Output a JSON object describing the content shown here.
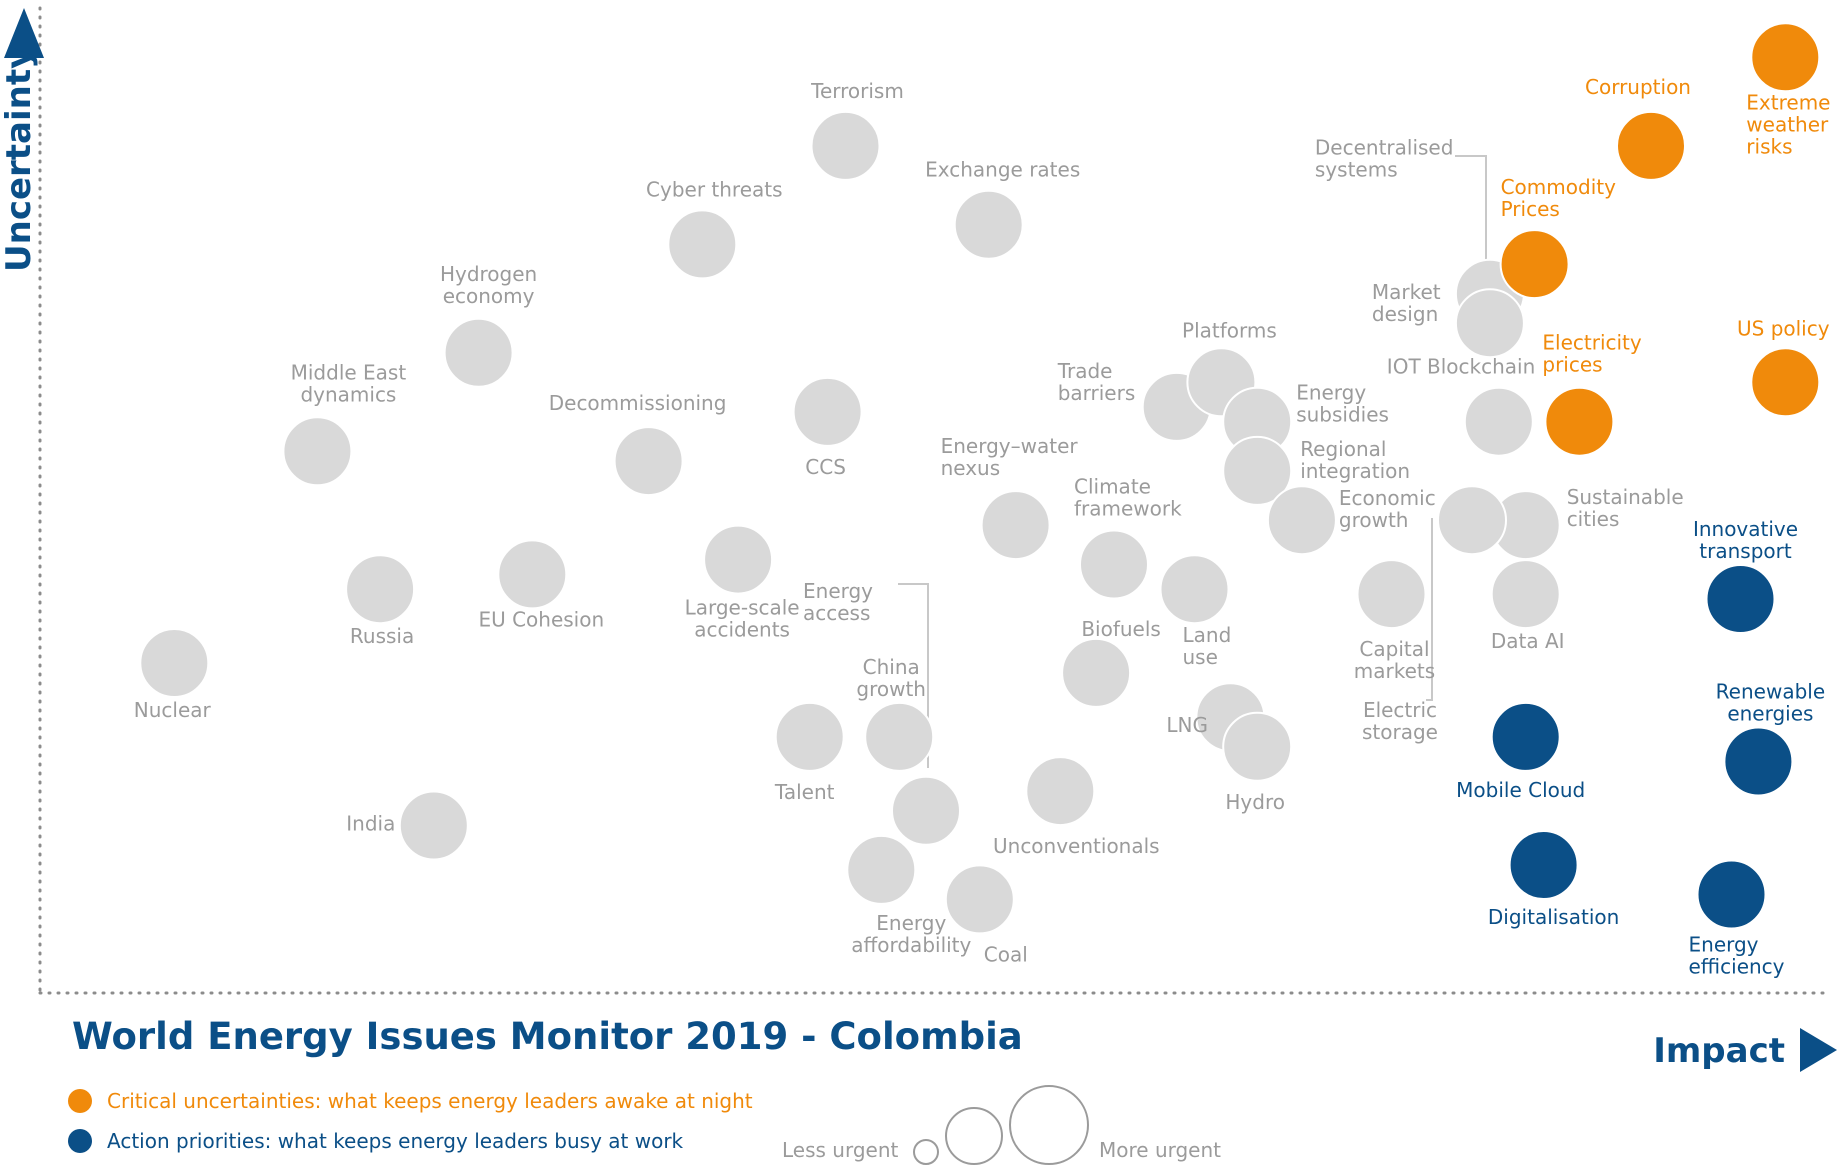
{
  "chart_data": {
    "type": "scatter",
    "title": "World Energy Issues Monitor 2019 - Colombia",
    "xlabel": "Impact",
    "ylabel": "Uncertainty",
    "xlim": [
      0,
      100
    ],
    "ylim": [
      0,
      100
    ],
    "grid": false,
    "colors": {
      "neutral": "#d9d9d9",
      "critical": "#f08a0b",
      "action": "#0b4f87",
      "label_neutral": "#9b9b9b"
    },
    "legend": [
      {
        "category": "critical",
        "label": "Critical uncertainties: what keeps energy leaders awake at night"
      },
      {
        "category": "action",
        "label": "Action priorities: what keeps energy leaders busy at work"
      }
    ],
    "size_legend": {
      "less": "Less urgent",
      "more": "More urgent"
    },
    "points": [
      {
        "name": "Terrorism",
        "x": 45,
        "y": 86,
        "category": "neutral"
      },
      {
        "name": "Cyber threats",
        "x": 37,
        "y": 76,
        "category": "neutral"
      },
      {
        "name": "Exchange rates",
        "x": 53,
        "y": 78,
        "category": "neutral"
      },
      {
        "name": "Hydrogen economy",
        "x": 24.5,
        "y": 65,
        "category": "neutral"
      },
      {
        "name": "Middle East dynamics",
        "x": 15.5,
        "y": 55,
        "category": "neutral"
      },
      {
        "name": "Decommissioning",
        "x": 34,
        "y": 54,
        "category": "neutral"
      },
      {
        "name": "CCS",
        "x": 44,
        "y": 59,
        "category": "neutral"
      },
      {
        "name": "Energy–water nexus",
        "x": 54.5,
        "y": 47.5,
        "category": "neutral"
      },
      {
        "name": "Climate framework",
        "x": 60,
        "y": 43.5,
        "category": "neutral"
      },
      {
        "name": "Trade barriers",
        "x": 63.5,
        "y": 59.5,
        "category": "neutral"
      },
      {
        "name": "Platforms",
        "x": 66,
        "y": 62,
        "category": "neutral"
      },
      {
        "name": "Energy subsidies",
        "x": 68,
        "y": 58,
        "category": "neutral"
      },
      {
        "name": "Regional integration",
        "x": 68,
        "y": 53,
        "category": "neutral"
      },
      {
        "name": "Economic growth",
        "x": 70.5,
        "y": 48,
        "category": "neutral"
      },
      {
        "name": "Decentralised systems",
        "x": 81,
        "y": 71,
        "category": "neutral"
      },
      {
        "name": "Market design",
        "x": 81,
        "y": 68,
        "category": "neutral"
      },
      {
        "name": "IOT Blockchain",
        "x": 81.5,
        "y": 58,
        "category": "neutral"
      },
      {
        "name": "Sustainable cities",
        "x": 83,
        "y": 47.5,
        "category": "neutral"
      },
      {
        "name": "Electric storage",
        "x": 80,
        "y": 48,
        "category": "neutral"
      },
      {
        "name": "Data AI",
        "x": 83,
        "y": 40.5,
        "category": "neutral"
      },
      {
        "name": "Capital markets",
        "x": 75.5,
        "y": 40.5,
        "category": "neutral"
      },
      {
        "name": "Russia",
        "x": 19,
        "y": 41,
        "category": "neutral"
      },
      {
        "name": "EU Cohesion",
        "x": 27.5,
        "y": 42.5,
        "category": "neutral"
      },
      {
        "name": "Large-scale accidents",
        "x": 39,
        "y": 44,
        "category": "neutral"
      },
      {
        "name": "Nuclear",
        "x": 7.5,
        "y": 33.5,
        "category": "neutral"
      },
      {
        "name": "Biofuels",
        "x": 59,
        "y": 32.5,
        "category": "neutral"
      },
      {
        "name": "Land use",
        "x": 64.5,
        "y": 41,
        "category": "neutral"
      },
      {
        "name": "LNG",
        "x": 66.5,
        "y": 28,
        "category": "neutral"
      },
      {
        "name": "Hydro",
        "x": 68,
        "y": 25,
        "category": "neutral"
      },
      {
        "name": "Talent",
        "x": 43,
        "y": 26,
        "category": "neutral"
      },
      {
        "name": "China growth",
        "x": 48,
        "y": 26,
        "category": "neutral"
      },
      {
        "name": "Energy access",
        "x": 49.5,
        "y": 18.5,
        "category": "neutral"
      },
      {
        "name": "Unconventionals",
        "x": 57,
        "y": 20.5,
        "category": "neutral"
      },
      {
        "name": "Energy affordability",
        "x": 47,
        "y": 12.5,
        "category": "neutral"
      },
      {
        "name": "Coal",
        "x": 52.5,
        "y": 9.5,
        "category": "neutral"
      },
      {
        "name": "India",
        "x": 22,
        "y": 17,
        "category": "neutral"
      },
      {
        "name": "Extreme weather risks",
        "x": 97.5,
        "y": 95,
        "category": "critical"
      },
      {
        "name": "Corruption",
        "x": 90,
        "y": 86,
        "category": "critical"
      },
      {
        "name": "Commodity Prices",
        "x": 83.5,
        "y": 74,
        "category": "critical"
      },
      {
        "name": "Electricity prices",
        "x": 86,
        "y": 58,
        "category": "critical"
      },
      {
        "name": "US policy",
        "x": 97.5,
        "y": 62,
        "category": "critical"
      },
      {
        "name": "Innovative transport",
        "x": 95,
        "y": 40,
        "category": "action"
      },
      {
        "name": "Renewable energies",
        "x": 96,
        "y": 23.5,
        "category": "action"
      },
      {
        "name": "Mobile Cloud",
        "x": 83,
        "y": 26,
        "category": "action"
      },
      {
        "name": "Digitalisation",
        "x": 84,
        "y": 13,
        "category": "action"
      },
      {
        "name": "Energy efficiency",
        "x": 94.5,
        "y": 10,
        "category": "action"
      }
    ]
  }
}
